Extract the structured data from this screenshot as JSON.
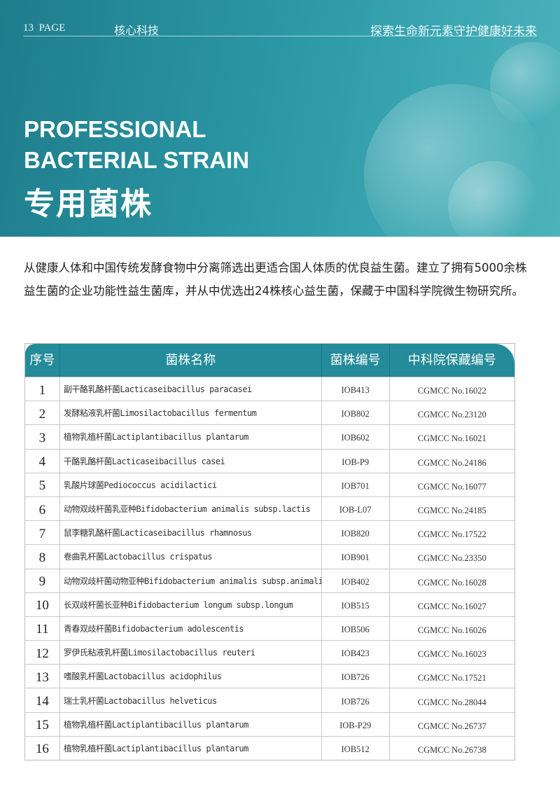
{
  "header": {
    "page": "13  PAGE",
    "section": "核心科技",
    "slogan": "探索生命新元素守护健康好未来"
  },
  "title": {
    "en_line1": "PROFESSIONAL",
    "en_line2": "BACTERIAL STRAIN",
    "cn": "专用菌株"
  },
  "intro": "从健康人体和中国传统发酵食物中分离筛选出更适合国人体质的优良益生菌。建立了拥有5000余株益生菌的企业功能性益生菌库，并从中优选出24株核心益生菌，保藏于中国科学院微生物研究所。",
  "colors": {
    "banner": "#2a95a3",
    "table_header": "#238b99"
  },
  "table": {
    "headers": [
      "序号",
      "菌株名称",
      "菌株编号",
      "中科院保藏编号"
    ],
    "rows": [
      [
        "1",
        "副干酪乳酪杆菌Lacticaseibacillus paracasei",
        "IOB413",
        "CGMCC No.16022"
      ],
      [
        "2",
        "发酵粘液乳杆菌Limosilactobacillus fermentum",
        "IOB802",
        "CGMCC No.23120"
      ],
      [
        "3",
        "植物乳植杆菌Lactiplantibacillus plantarum",
        "IOB602",
        "CGMCC No.16021"
      ],
      [
        "4",
        "干酪乳酪杆菌Lacticaseibacillus casei",
        "IOB-P9",
        "CGMCC No.24186"
      ],
      [
        "5",
        "乳酸片球菌Pediococcus acidilactici",
        "IOB701",
        "CGMCC No.16077"
      ],
      [
        "6",
        "动物双歧杆菌乳亚种Bifidobacterium animalis subsp.lactis",
        "IOB-L07",
        "CGMCC No.24185"
      ],
      [
        "7",
        "鼠李糖乳酪杆菌Lacticaseibacillus rhamnosus",
        "IOB820",
        "CGMCC No.17522"
      ],
      [
        "8",
        "卷曲乳杆菌Lactobacillus crispatus",
        "IOB901",
        "CGMCC No.23350"
      ],
      [
        "9",
        "动物双歧杆菌动物亚种Bifidobacterium animalis subsp.animalis",
        "IOB402",
        "CGMCC No.16028"
      ],
      [
        "10",
        "长双歧杆菌长亚种Bifidobacterium longum subsp.longum",
        "IOB515",
        "CGMCC No.16027"
      ],
      [
        "11",
        "青春双歧杆菌Bifidobacterium adolescentis",
        "IOB506",
        "CGMCC No.16026"
      ],
      [
        "12",
        "罗伊氏粘液乳杆菌Limosilactobacillus reuteri",
        "IOB423",
        "CGMCC No.16023"
      ],
      [
        "13",
        "嗜酸乳杆菌Lactobacillus acidophilus",
        "IOB726",
        "CGMCC No.17521"
      ],
      [
        "14",
        "瑞士乳杆菌Lactobacillus helveticus",
        "IOB726",
        "CGMCC No.28044"
      ],
      [
        "15",
        "植物乳植杆菌Lactiplantibacillus plantarum",
        "IOB-P29",
        "CGMCC No.26737"
      ],
      [
        "16",
        "植物乳植杆菌Lactiplantibacillus plantarum",
        "IOB512",
        "CGMCC No.26738"
      ]
    ]
  }
}
